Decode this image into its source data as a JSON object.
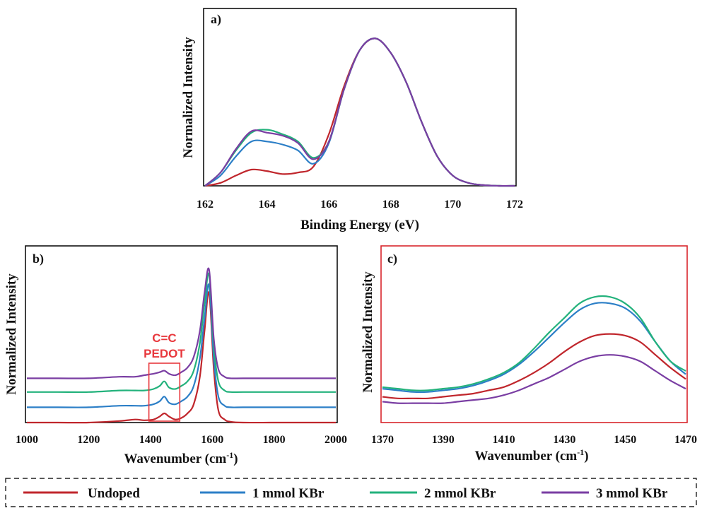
{
  "colors": {
    "Undoped": "#c0262c",
    "1 mmol KBr": "#2c7fc7",
    "2 mmol KBr": "#23b27c",
    "3 mmol KBr": "#7a3ea3",
    "annotation": "#e8383d",
    "frame_a": "#111111",
    "frame_b": "#111111",
    "frame_c": "#d9262c"
  },
  "legend": {
    "items": [
      "Undoped",
      "1 mmol KBr",
      "2 mmol KBr",
      "3 mmol KBr"
    ]
  },
  "chart_data": [
    {
      "id": "a",
      "panel_label": "a)",
      "type": "line",
      "xlabel": "Binding Energy (eV)",
      "ylabel": "Normalized Intensity",
      "xlim": [
        162,
        172
      ],
      "ylim": [
        0,
        1
      ],
      "xticks": [
        162,
        164,
        166,
        168,
        170,
        172
      ],
      "yticks_labeled": false,
      "x": [
        162,
        162.5,
        163,
        163.5,
        164,
        164.5,
        165,
        165.5,
        166,
        166.5,
        167,
        167.5,
        168,
        168.5,
        169,
        169.5,
        170,
        170.5,
        171,
        171.5,
        172
      ],
      "series": [
        {
          "name": "Undoped",
          "values": [
            0.0,
            0.02,
            0.07,
            0.11,
            0.1,
            0.08,
            0.09,
            0.13,
            0.35,
            0.68,
            0.92,
            0.998,
            0.9,
            0.7,
            0.43,
            0.2,
            0.07,
            0.02,
            0.005,
            0.0,
            0.0
          ]
        },
        {
          "name": "1 mmol KBr",
          "values": [
            0.0,
            0.07,
            0.2,
            0.3,
            0.3,
            0.28,
            0.24,
            0.15,
            0.29,
            0.66,
            0.92,
            0.998,
            0.9,
            0.7,
            0.43,
            0.2,
            0.07,
            0.02,
            0.005,
            0.0,
            0.0
          ]
        },
        {
          "name": "2 mmol KBr",
          "values": [
            0.0,
            0.09,
            0.24,
            0.36,
            0.38,
            0.35,
            0.3,
            0.19,
            0.3,
            0.66,
            0.92,
            0.998,
            0.9,
            0.7,
            0.43,
            0.2,
            0.07,
            0.02,
            0.005,
            0.0,
            0.0
          ]
        },
        {
          "name": "3 mmol KBr",
          "values": [
            0.0,
            0.09,
            0.25,
            0.37,
            0.36,
            0.34,
            0.29,
            0.18,
            0.3,
            0.66,
            0.92,
            0.998,
            0.9,
            0.7,
            0.43,
            0.2,
            0.07,
            0.02,
            0.005,
            0.0,
            0.0
          ]
        }
      ]
    },
    {
      "id": "b",
      "panel_label": "b)",
      "type": "line",
      "xlabel": "Wavenumber (cm-1)",
      "ylabel": "Normalized Intensity",
      "xlim": [
        1000,
        2000
      ],
      "ylim": [
        0,
        1
      ],
      "xticks": [
        1000,
        1200,
        1400,
        1600,
        1800,
        2000
      ],
      "yticks_labeled": false,
      "annotation": {
        "text_lines": [
          "C=C",
          "PEDOT"
        ],
        "box_x_range": [
          1395,
          1495
        ]
      },
      "x": [
        1000,
        1100,
        1200,
        1300,
        1350,
        1380,
        1410,
        1430,
        1445,
        1460,
        1480,
        1500,
        1520,
        1540,
        1560,
        1575,
        1590,
        1605,
        1620,
        1640,
        1660,
        1700,
        1800,
        1900,
        2000
      ],
      "series": [
        {
          "name": "Undoped",
          "values": [
            0.0,
            0.0,
            0.0,
            0.01,
            0.02,
            0.015,
            0.02,
            0.04,
            0.06,
            0.04,
            0.02,
            0.03,
            0.06,
            0.12,
            0.3,
            0.6,
            0.85,
            0.35,
            0.08,
            0.02,
            0.005,
            0.0,
            0.0,
            0.0,
            0.0
          ]
        },
        {
          "name": "1 mmol KBr",
          "values": [
            0.1,
            0.1,
            0.1,
            0.11,
            0.11,
            0.11,
            0.12,
            0.14,
            0.17,
            0.13,
            0.12,
            0.14,
            0.17,
            0.24,
            0.42,
            0.68,
            0.9,
            0.42,
            0.17,
            0.11,
            0.1,
            0.1,
            0.1,
            0.1,
            0.1
          ]
        },
        {
          "name": "2 mmol KBr",
          "values": [
            0.2,
            0.2,
            0.2,
            0.21,
            0.21,
            0.21,
            0.22,
            0.24,
            0.27,
            0.23,
            0.22,
            0.24,
            0.27,
            0.34,
            0.52,
            0.78,
            0.97,
            0.5,
            0.27,
            0.21,
            0.2,
            0.2,
            0.2,
            0.2,
            0.2
          ]
        },
        {
          "name": "3 mmol KBr",
          "values": [
            0.29,
            0.29,
            0.29,
            0.3,
            0.3,
            0.31,
            0.32,
            0.33,
            0.34,
            0.32,
            0.31,
            0.33,
            0.36,
            0.43,
            0.6,
            0.85,
            1.0,
            0.55,
            0.35,
            0.3,
            0.29,
            0.29,
            0.29,
            0.29,
            0.29
          ]
        }
      ]
    },
    {
      "id": "c",
      "panel_label": "c)",
      "type": "line",
      "xlabel": "Wavenumber (cm-1)",
      "ylabel": "Normalized Intensity",
      "xlim": [
        1370,
        1470
      ],
      "ylim": [
        0,
        1
      ],
      "xticks": [
        1370,
        1390,
        1410,
        1430,
        1450,
        1470
      ],
      "yticks_labeled": false,
      "x": [
        1370,
        1375,
        1380,
        1385,
        1390,
        1395,
        1400,
        1405,
        1410,
        1415,
        1420,
        1425,
        1430,
        1435,
        1440,
        1445,
        1450,
        1455,
        1460,
        1465,
        1470
      ],
      "series": [
        {
          "name": "Undoped",
          "values": [
            0.16,
            0.15,
            0.15,
            0.15,
            0.16,
            0.17,
            0.18,
            0.2,
            0.22,
            0.26,
            0.31,
            0.37,
            0.44,
            0.5,
            0.54,
            0.55,
            0.54,
            0.5,
            0.42,
            0.34,
            0.27
          ]
        },
        {
          "name": "1 mmol KBr",
          "values": [
            0.21,
            0.2,
            0.19,
            0.19,
            0.2,
            0.21,
            0.23,
            0.26,
            0.3,
            0.36,
            0.44,
            0.53,
            0.62,
            0.7,
            0.74,
            0.74,
            0.71,
            0.63,
            0.5,
            0.38,
            0.3
          ]
        },
        {
          "name": "2 mmol KBr",
          "values": [
            0.22,
            0.21,
            0.2,
            0.2,
            0.21,
            0.22,
            0.24,
            0.27,
            0.31,
            0.37,
            0.46,
            0.56,
            0.65,
            0.74,
            0.78,
            0.78,
            0.74,
            0.65,
            0.5,
            0.38,
            0.32
          ]
        },
        {
          "name": "3 mmol KBr",
          "values": [
            0.13,
            0.12,
            0.12,
            0.12,
            0.12,
            0.13,
            0.14,
            0.15,
            0.17,
            0.2,
            0.24,
            0.28,
            0.33,
            0.38,
            0.41,
            0.42,
            0.41,
            0.38,
            0.32,
            0.26,
            0.21
          ]
        }
      ]
    }
  ]
}
